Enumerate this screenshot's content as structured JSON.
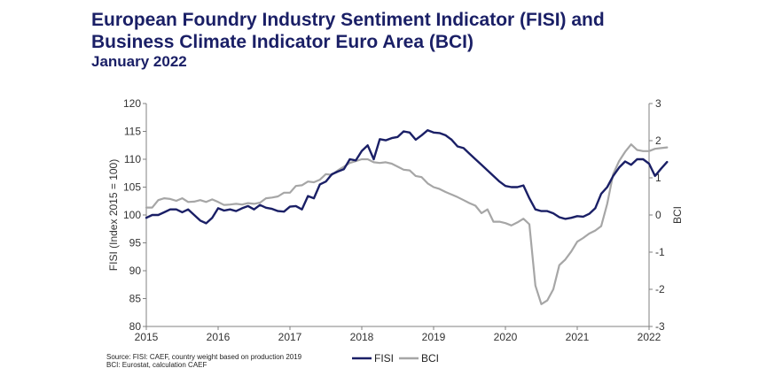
{
  "header": {
    "title_line1": "European Foundry Industry Sentiment Indicator (FISI) and",
    "title_line2": "Business Climate Indicator Euro Area (BCI)",
    "subtitle": "January 2022"
  },
  "source": {
    "line1": "Source: FISI: CAEF, country weight based on production 2019",
    "line2": "BCI: Eurostat, calculation CAEF"
  },
  "colors": {
    "fisi": "#1a1f66",
    "bci": "#a6a6a6",
    "axis": "#808080"
  },
  "chart_data": {
    "type": "line",
    "title": "",
    "xlabel": "",
    "ylabel": "FISI (Index 2015 = 100)",
    "y2label": "BCI",
    "xlim": [
      2015,
      2022
    ],
    "ylim": [
      80,
      120
    ],
    "y2lim": [
      -3,
      3
    ],
    "x_ticks": [
      2015,
      2016,
      2017,
      2018,
      2019,
      2020,
      2021,
      2022
    ],
    "y_ticks": [
      80,
      85,
      90,
      95,
      100,
      105,
      110,
      115,
      120
    ],
    "y2_ticks": [
      -3,
      -2,
      -1,
      0,
      1,
      2,
      3
    ],
    "legend_placement": "bottom-center",
    "grid": false,
    "series": [
      {
        "name": "FISI",
        "axis": "left",
        "color": "#1a1f66",
        "x_start": "2015-01",
        "frequency": "monthly",
        "values": [
          99.5,
          100.0,
          100.0,
          100.5,
          101.0,
          101.0,
          100.5,
          101.0,
          100.0,
          99.0,
          98.5,
          99.5,
          101.2,
          100.8,
          101.0,
          100.7,
          101.2,
          101.6,
          101.0,
          101.8,
          101.3,
          101.1,
          100.7,
          100.6,
          101.5,
          101.6,
          101.0,
          103.4,
          103.0,
          105.5,
          106.0,
          107.3,
          107.8,
          108.2,
          110.0,
          109.8,
          111.5,
          112.5,
          110.0,
          113.6,
          113.4,
          113.8,
          114.0,
          115.0,
          114.8,
          113.5,
          114.3,
          115.2,
          114.8,
          114.7,
          114.3,
          113.5,
          112.3,
          112.0,
          111.0,
          110.0,
          109.0,
          108.0,
          107.0,
          106.0,
          105.2,
          105.0,
          105.0,
          105.3,
          103.0,
          101.0,
          100.7,
          100.7,
          100.3,
          99.6,
          99.3,
          99.5,
          99.8,
          99.7,
          100.2,
          101.2,
          103.8,
          105.0,
          107.0,
          108.5,
          109.6,
          109.0,
          110.0,
          110.0,
          109.2,
          107.0,
          108.3,
          109.5
        ]
      },
      {
        "name": "BCI",
        "axis": "right",
        "color": "#a6a6a6",
        "x_start": "2015-01",
        "frequency": "monthly",
        "values": [
          0.2,
          0.2,
          0.4,
          0.45,
          0.43,
          0.38,
          0.45,
          0.35,
          0.36,
          0.4,
          0.35,
          0.42,
          0.35,
          0.27,
          0.28,
          0.3,
          0.28,
          0.32,
          0.3,
          0.33,
          0.45,
          0.47,
          0.5,
          0.6,
          0.6,
          0.78,
          0.8,
          0.9,
          0.88,
          0.95,
          1.1,
          1.08,
          1.2,
          1.3,
          1.4,
          1.45,
          1.5,
          1.5,
          1.42,
          1.4,
          1.42,
          1.38,
          1.3,
          1.22,
          1.2,
          1.05,
          1.02,
          0.85,
          0.75,
          0.7,
          0.62,
          0.55,
          0.48,
          0.4,
          0.32,
          0.25,
          0.05,
          0.15,
          -0.18,
          -0.18,
          -0.22,
          -0.28,
          -0.2,
          -0.1,
          -0.25,
          -1.9,
          -2.4,
          -2.3,
          -2.0,
          -1.35,
          -1.2,
          -0.98,
          -0.72,
          -0.62,
          -0.5,
          -0.42,
          -0.3,
          0.3,
          1.1,
          1.45,
          1.7,
          1.9,
          1.75,
          1.72,
          1.72,
          1.78,
          1.8,
          1.82
        ]
      }
    ]
  }
}
